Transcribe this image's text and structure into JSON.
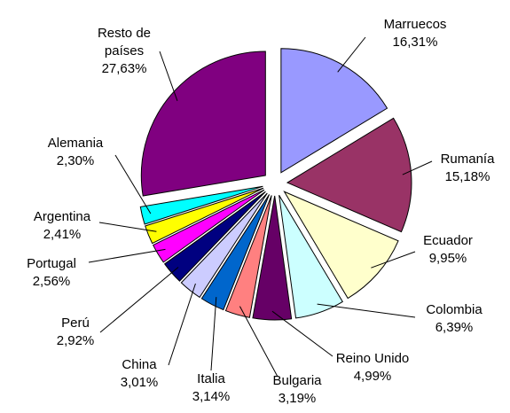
{
  "chart_data": {
    "type": "pie",
    "categories": [
      "Marruecos",
      "Rumanía",
      "Ecuador",
      "Colombia",
      "Reino Unido",
      "Bulgaria",
      "Italia",
      "China",
      "Perú",
      "Portugal",
      "Argentina",
      "Alemania",
      "Resto de países"
    ],
    "values": [
      16.31,
      15.18,
      9.95,
      6.39,
      4.99,
      3.19,
      3.14,
      3.01,
      2.92,
      2.56,
      2.41,
      2.3,
      27.63
    ],
    "value_labels": [
      "16,31%",
      "15,18%",
      "9,95%",
      "6,39%",
      "4,99%",
      "3,19%",
      "3,14%",
      "3,01%",
      "2,92%",
      "2,56%",
      "2,41%",
      "2,30%",
      "27,63%"
    ],
    "colors": [
      "#9999ff",
      "#993366",
      "#ffffcc",
      "#ccffff",
      "#660066",
      "#ff8080",
      "#0066cc",
      "#ccccff",
      "#000080",
      "#ff00ff",
      "#ffff00",
      "#00ffff",
      "#800080"
    ]
  }
}
